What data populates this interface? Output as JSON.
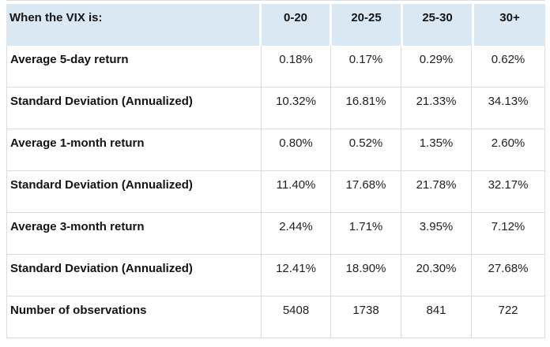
{
  "colors": {
    "header_bg": "#d9e8f2",
    "border": "#dcdcdc",
    "label_text": "#131313",
    "value_text": "#1f1f1f"
  },
  "chart_data": {
    "type": "table",
    "corner_label": "When the VIX is:",
    "columns": [
      "0-20",
      "20-25",
      "25-30",
      "30+"
    ],
    "rows": [
      {
        "label": "Average 5-day return",
        "values": [
          "0.18%",
          "0.17%",
          "0.29%",
          "0.62%"
        ]
      },
      {
        "label": "Standard Deviation (Annualized)",
        "values": [
          "10.32%",
          "16.81%",
          "21.33%",
          "34.13%"
        ]
      },
      {
        "label": "Average 1-month return",
        "values": [
          "0.80%",
          "0.52%",
          "1.35%",
          "2.60%"
        ]
      },
      {
        "label": "Standard Deviation (Annualized)",
        "values": [
          "11.40%",
          "17.68%",
          "21.78%",
          "32.17%"
        ]
      },
      {
        "label": "Average 3-month return",
        "values": [
          "2.44%",
          "1.71%",
          "3.95%",
          "7.12%"
        ]
      },
      {
        "label": "Standard Deviation (Annualized)",
        "values": [
          "12.41%",
          "18.90%",
          "20.30%",
          "27.68%"
        ]
      },
      {
        "label": "Number of observations",
        "values": [
          "5408",
          "1738",
          "841",
          "722"
        ]
      }
    ]
  }
}
